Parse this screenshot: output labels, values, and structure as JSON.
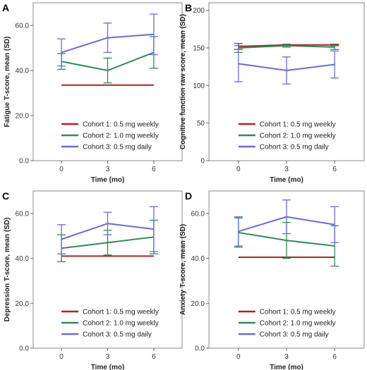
{
  "chart_data": [
    {
      "type": "line",
      "panel": "A",
      "ylabel": "Fatigue T-score, mean (SD)",
      "xlabel": "Time (mo)",
      "x": [
        0,
        3,
        6
      ],
      "x_ticks": [
        "0",
        "3",
        "6"
      ],
      "ylim": [
        0,
        70
      ],
      "y_ticks": [
        0,
        20,
        40,
        60
      ],
      "y_tick_labels": [
        "0.0",
        "20.0",
        "40.0",
        "60.0"
      ],
      "grid": false,
      "legend_position": "bottom-right",
      "series": [
        {
          "name": "Cohort 1: 0.5 mg weekly",
          "color": "#b22222",
          "values": [
            33.5,
            33.5,
            33.5
          ],
          "sd": [
            0,
            0,
            0
          ]
        },
        {
          "name": "Cohort 2: 1.0 mg weekly",
          "color": "#2e8b57",
          "values": [
            44,
            40,
            48
          ],
          "sd": [
            3.5,
            5.5,
            7
          ]
        },
        {
          "name": "Cohort 3: 0.5 mg daily",
          "color": "#6a6ae0",
          "values": [
            48,
            54.5,
            56
          ],
          "sd": [
            6,
            6.5,
            9
          ]
        }
      ]
    },
    {
      "type": "line",
      "panel": "B",
      "ylabel": "Cognitive function raw score, mean (SD)",
      "xlabel": "Time (mo)",
      "x": [
        0,
        3,
        6
      ],
      "x_ticks": [
        "0",
        "3",
        "6"
      ],
      "ylim": [
        0,
        210
      ],
      "y_ticks": [
        0,
        50,
        100,
        150,
        200
      ],
      "y_tick_labels": [
        "0",
        "50",
        "100",
        "150",
        "200"
      ],
      "grid": false,
      "legend_position": "bottom-right",
      "series": [
        {
          "name": "Cohort 1: 0.5 mg weekly",
          "color": "#b22222",
          "values": [
            152,
            154,
            154
          ],
          "sd": [
            4,
            1,
            1
          ]
        },
        {
          "name": "Cohort 2: 1.0 mg weekly",
          "color": "#2e8b57",
          "values": [
            150,
            153,
            151
          ],
          "sd": [
            6,
            2,
            3
          ]
        },
        {
          "name": "Cohort 3: 0.5 mg daily",
          "color": "#6a6ae0",
          "values": [
            129,
            120,
            128
          ],
          "sd": [
            24,
            18,
            18
          ]
        }
      ]
    },
    {
      "type": "line",
      "panel": "C",
      "ylabel": "Depression T-score, mean (SD)",
      "xlabel": "Time (mo)",
      "x": [
        0,
        3,
        6
      ],
      "x_ticks": [
        "0",
        "3",
        "6"
      ],
      "ylim": [
        0,
        70
      ],
      "y_ticks": [
        0,
        20,
        40,
        60
      ],
      "y_tick_labels": [
        "0.0",
        "20.0",
        "40.0",
        "60.0"
      ],
      "grid": false,
      "legend_position": "bottom-right",
      "series": [
        {
          "name": "Cohort 1: 0.5 mg weekly",
          "color": "#b22222",
          "values": [
            41,
            41,
            41
          ],
          "sd": [
            0,
            0,
            0
          ]
        },
        {
          "name": "Cohort 2: 1.0 mg weekly",
          "color": "#2e8b57",
          "values": [
            44.5,
            47,
            49.5
          ],
          "sd": [
            6,
            5.5,
            7.5
          ]
        },
        {
          "name": "Cohort 3: 0.5 mg daily",
          "color": "#6a6ae0",
          "values": [
            48.5,
            55.5,
            53
          ],
          "sd": [
            6.5,
            5,
            10
          ]
        }
      ]
    },
    {
      "type": "line",
      "panel": "D",
      "ylabel": "Anxiety T-score, mean (SD)",
      "xlabel": "Time (mo)",
      "x": [
        0,
        3,
        6
      ],
      "x_ticks": [
        "0",
        "3",
        "6"
      ],
      "ylim": [
        0,
        70
      ],
      "y_ticks": [
        0,
        20,
        40,
        60
      ],
      "y_tick_labels": [
        "0.0",
        "20.0",
        "40.0",
        "60.0"
      ],
      "grid": false,
      "legend_position": "bottom-right",
      "series": [
        {
          "name": "Cohort 1: 0.5 mg weekly",
          "color": "#b22222",
          "values": [
            40.5,
            40.5,
            40.5
          ],
          "sd": [
            0,
            0,
            0
          ]
        },
        {
          "name": "Cohort 2: 1.0 mg weekly",
          "color": "#2e8b57",
          "values": [
            51.5,
            48,
            45.5
          ],
          "sd": [
            6.5,
            8,
            9
          ]
        },
        {
          "name": "Cohort 3: 0.5 mg daily",
          "color": "#6a6ae0",
          "values": [
            52,
            58.5,
            55
          ],
          "sd": [
            6.5,
            7.5,
            8
          ]
        }
      ]
    }
  ]
}
